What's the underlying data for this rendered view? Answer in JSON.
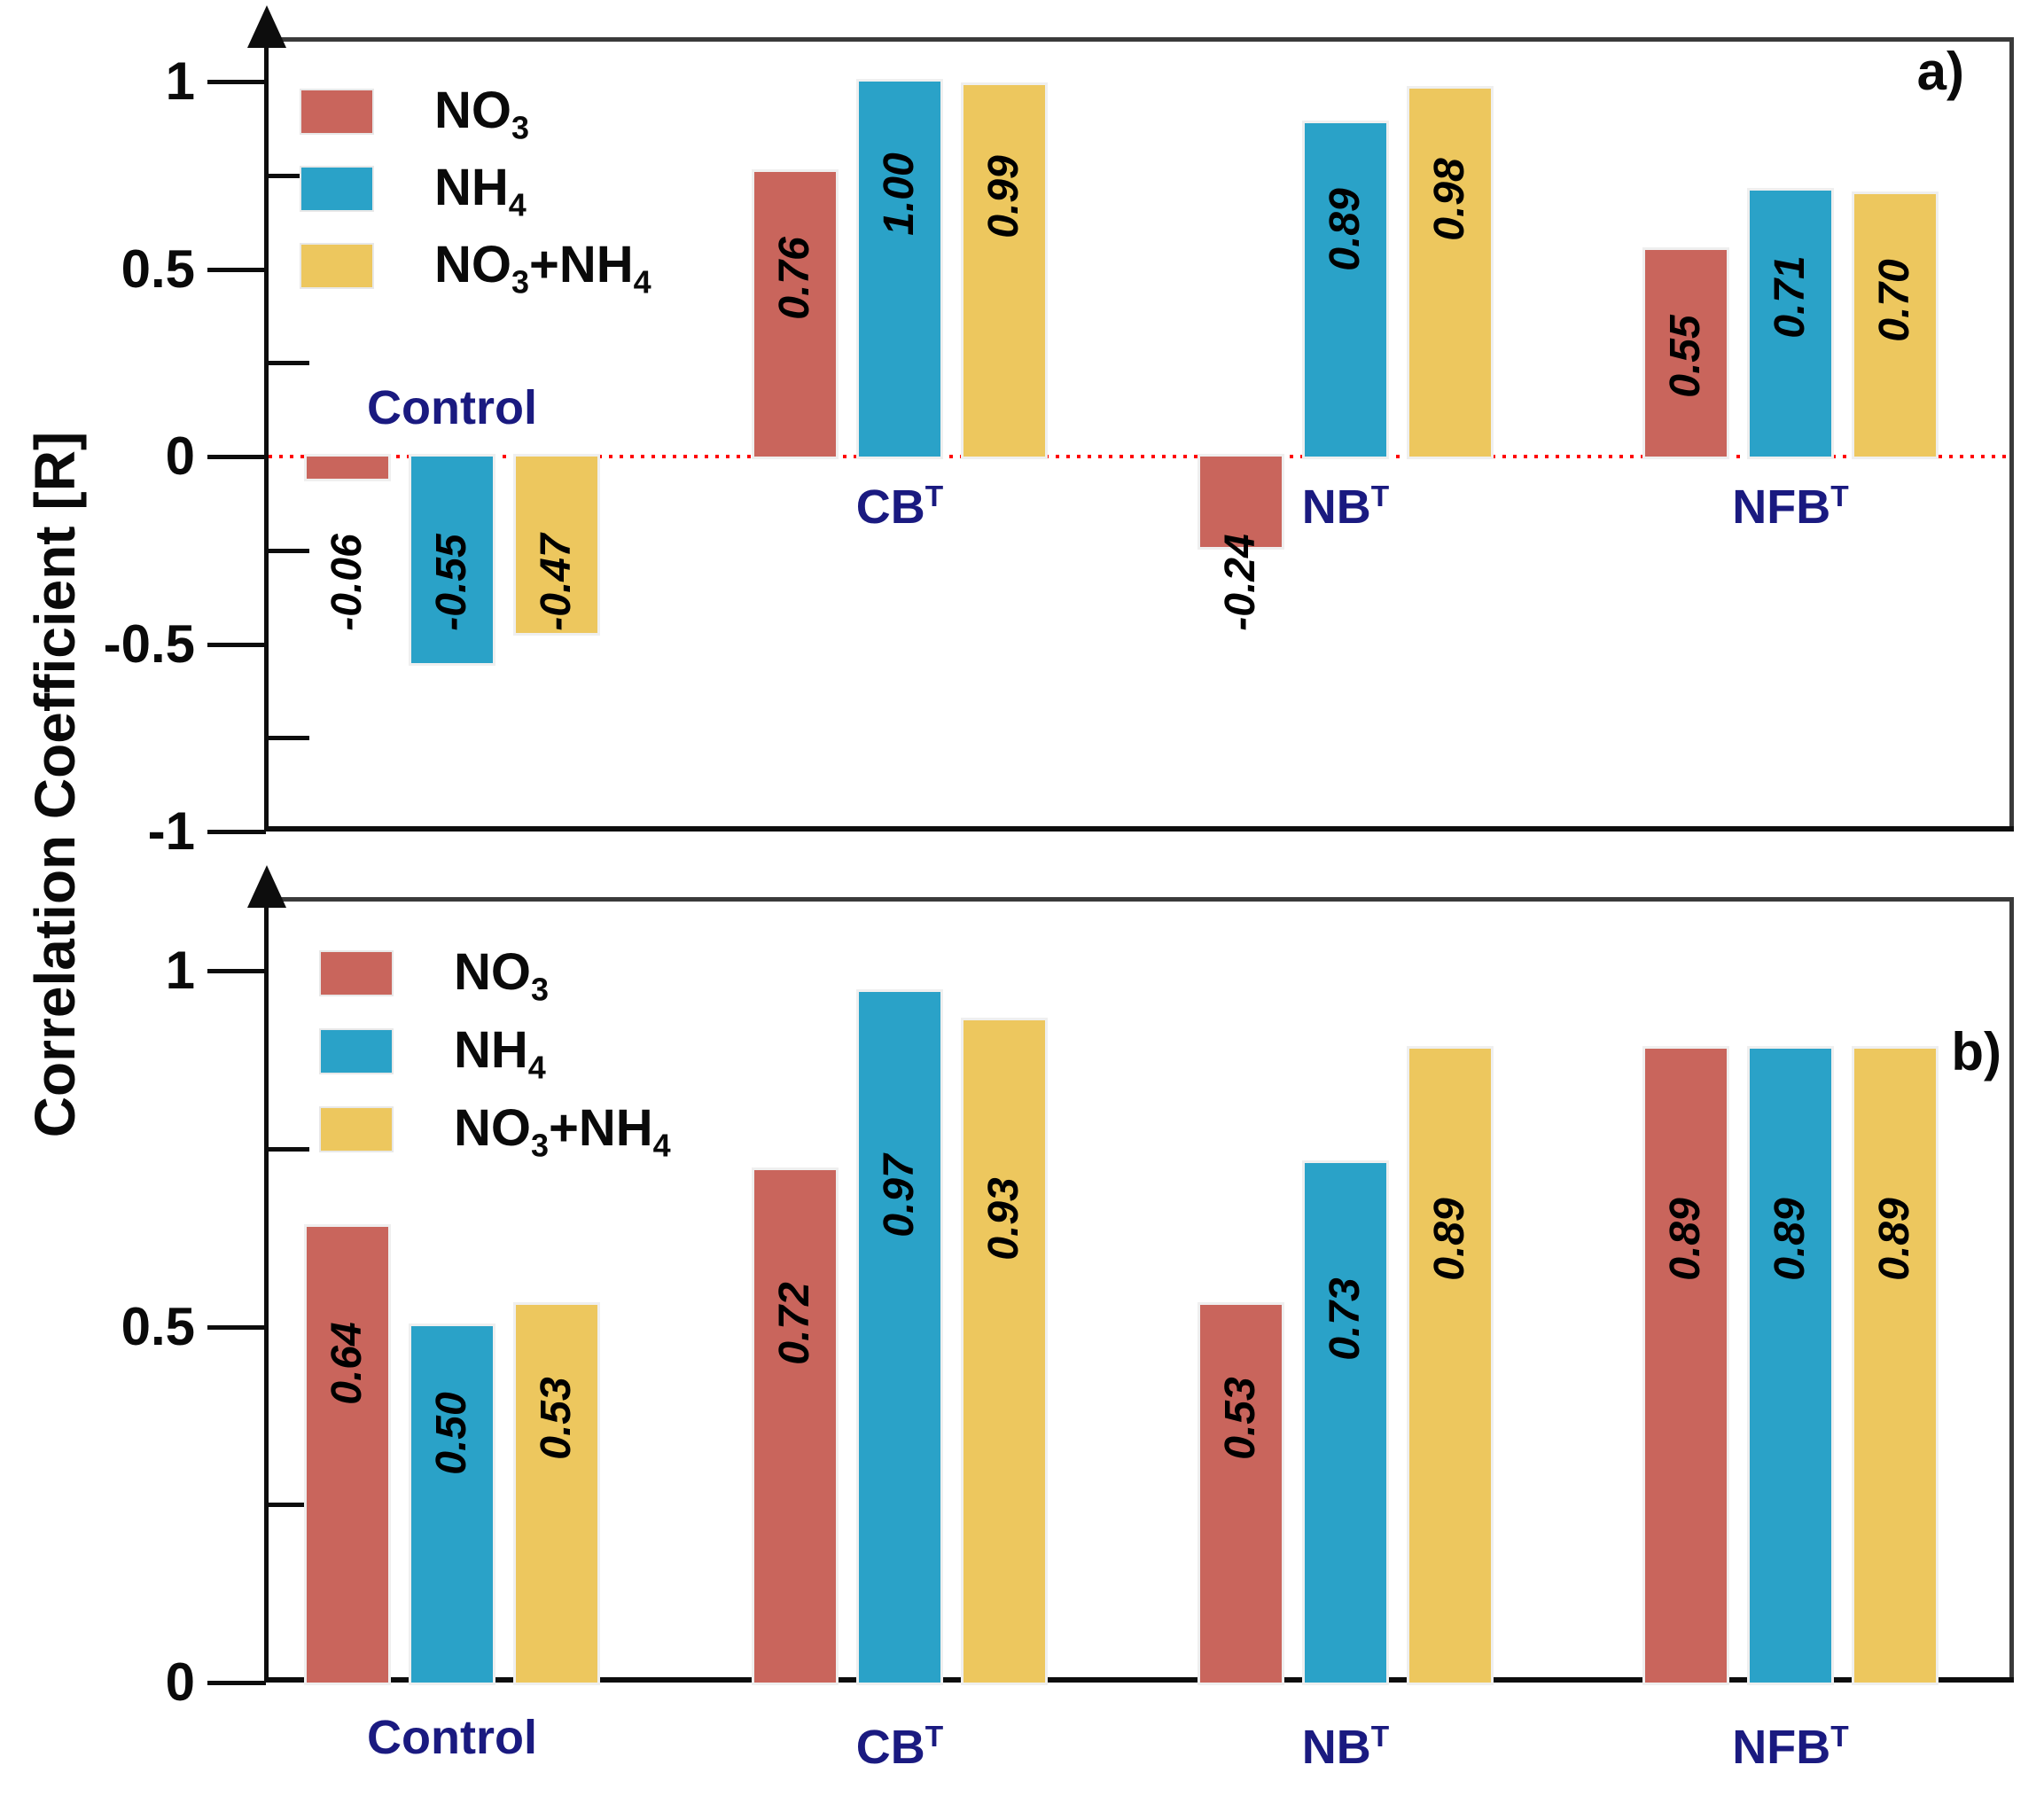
{
  "axis_title": "Correlation Coefficient [R]",
  "colors": {
    "no3": "#C9655C",
    "nh4": "#2AA2C8",
    "no3_nh4": "#EDC75E",
    "group_label": "#1A1A80",
    "zero_line": "#FF0000",
    "frame": "#3A3A3A",
    "axis": "#0D0D0D",
    "value_label": "#000000",
    "background": "#FFFFFF"
  },
  "legend": {
    "items": [
      {
        "name": "NO3",
        "color_key": "no3",
        "parts": [
          {
            "t": "NO"
          },
          {
            "sub": "3"
          }
        ]
      },
      {
        "name": "NH4",
        "color_key": "nh4",
        "parts": [
          {
            "t": "NH"
          },
          {
            "sub": "4"
          }
        ]
      },
      {
        "name": "NO3+NH4",
        "color_key": "no3_nh4",
        "parts": [
          {
            "t": "NO"
          },
          {
            "sub": "3"
          },
          {
            "t": "+NH"
          },
          {
            "sub": "4"
          }
        ]
      }
    ],
    "position": "top-left"
  },
  "chart_data": [
    {
      "panel_label": "a)",
      "type": "bar",
      "ylabel": "Correlation Coefficient [R]",
      "ylim": [
        -1,
        1.12
      ],
      "yticks": {
        "values": [
          1,
          0.5,
          0,
          -0.5,
          -1
        ],
        "labels": [
          "1",
          "0.5",
          "0",
          "-0.5",
          "-1"
        ]
      },
      "yticks_minor": [
        0.75,
        0.25,
        -0.25,
        -0.75
      ],
      "zero_line_dotted_red": true,
      "grid": false,
      "categories": [
        {
          "label": "Control",
          "parts": [
            {
              "t": "Control"
            }
          ],
          "label_position": "above-zero"
        },
        {
          "label": "CBT",
          "parts": [
            {
              "t": "CB"
            },
            {
              "sup": "T"
            }
          ],
          "label_position": "below-zero"
        },
        {
          "label": "NBT",
          "parts": [
            {
              "t": "NB"
            },
            {
              "sup": "T"
            }
          ],
          "label_position": "below-zero"
        },
        {
          "label": "NFBT",
          "parts": [
            {
              "t": "NFB"
            },
            {
              "sup": "T"
            }
          ],
          "label_position": "below-zero"
        }
      ],
      "series": [
        {
          "name": "NO3",
          "color_key": "no3",
          "values": [
            -0.06,
            0.76,
            -0.24,
            0.55
          ],
          "value_labels": [
            "-0.06",
            "0.76",
            "-0.24",
            "0.55"
          ]
        },
        {
          "name": "NH4",
          "color_key": "nh4",
          "values": [
            -0.55,
            1.0,
            0.89,
            0.71
          ],
          "value_labels": [
            "-0.55",
            "1.00",
            "0.89",
            "0.71"
          ]
        },
        {
          "name": "NO3+NH4",
          "color_key": "no3_nh4",
          "values": [
            -0.47,
            0.99,
            0.98,
            0.7
          ],
          "value_labels": [
            "-0.47",
            "0.99",
            "0.98",
            "0.70"
          ]
        }
      ]
    },
    {
      "panel_label": "b)",
      "type": "bar",
      "ylabel": "Correlation Coefficient [R]",
      "ylim": [
        0,
        1.11
      ],
      "yticks": {
        "values": [
          1,
          0.5,
          0
        ],
        "labels": [
          "1",
          "0.5",
          "0"
        ]
      },
      "yticks_minor": [
        0.75,
        0.25
      ],
      "zero_line_dotted_red": false,
      "grid": false,
      "categories": [
        {
          "label": "Control",
          "parts": [
            {
              "t": "Control"
            }
          ],
          "label_position": "below-axis"
        },
        {
          "label": "CBT",
          "parts": [
            {
              "t": "CB"
            },
            {
              "sup": "T"
            }
          ],
          "label_position": "below-axis"
        },
        {
          "label": "NBT",
          "parts": [
            {
              "t": "NB"
            },
            {
              "sup": "T"
            }
          ],
          "label_position": "below-axis"
        },
        {
          "label": "NFBT",
          "parts": [
            {
              "t": "NFB"
            },
            {
              "sup": "T"
            }
          ],
          "label_position": "below-axis"
        }
      ],
      "series": [
        {
          "name": "NO3",
          "color_key": "no3",
          "values": [
            0.64,
            0.72,
            0.53,
            0.89
          ],
          "value_labels": [
            "0.64",
            "0.72",
            "0.53",
            "0.89"
          ]
        },
        {
          "name": "NH4",
          "color_key": "nh4",
          "values": [
            0.5,
            0.97,
            0.73,
            0.89
          ],
          "value_labels": [
            "0.50",
            "0.97",
            "0.73",
            "0.89"
          ]
        },
        {
          "name": "NO3+NH4",
          "color_key": "no3_nh4",
          "values": [
            0.53,
            0.93,
            0.89,
            0.89
          ],
          "value_labels": [
            "0.53",
            "0.93",
            "0.89",
            "0.89"
          ]
        }
      ]
    }
  ]
}
